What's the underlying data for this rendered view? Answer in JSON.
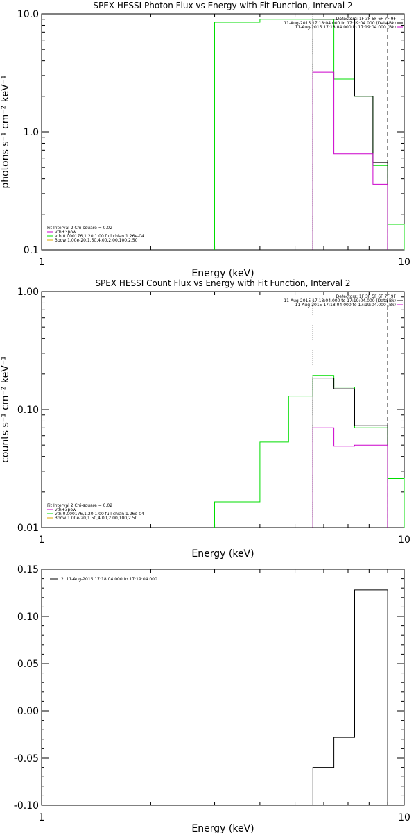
{
  "chart_data": [
    {
      "type": "line",
      "title": "SPEX HESSI Photon Flux vs Energy with Fit Function, Interval 2",
      "xlabel": "Energy (keV)",
      "ylabel": "photons s⁻¹ cm⁻² keV⁻¹",
      "xscale": "log",
      "yscale": "log",
      "xlim": [
        1,
        10
      ],
      "ylim": [
        0.1,
        10
      ],
      "xticks": [
        {
          "v": 1,
          "label": "1"
        },
        {
          "v": 10,
          "label": "10"
        }
      ],
      "yticks": [
        {
          "v": 10,
          "label": "10.0"
        },
        {
          "v": 1,
          "label": "1.0"
        },
        {
          "v": 0.1,
          "label": "0.1"
        }
      ],
      "vlines": [
        {
          "x": 5.6,
          "style": "dotted",
          "color": "#000000"
        },
        {
          "x": 9.0,
          "style": "dashed",
          "color": "#000000"
        }
      ],
      "header_lines": [
        "Detectors: 1F 3F 5F 6F 7F 9F",
        "11-Aug-2015 17:18:04.000 to 17:19:04.000 (Data-Bk)",
        "11-Aug-2015 17:18:04.000 to 17:19:04.000 (Bk)"
      ],
      "header_swatches": [
        "#000000",
        "#cc00cc"
      ],
      "fit_legend": {
        "header": "Fit Interval  2   Chi-square = 0.02",
        "entries": [
          {
            "label": "vth+3pow",
            "color": "#cc00cc"
          },
          {
            "label": "vth 0.000176,1.20,1.00  full chian 1.26e-04",
            "color": "#00dd00"
          },
          {
            "label": "3pow 1.00e-20,1.50,4.00,2.00,100,2.50",
            "color": "#ddaa00"
          }
        ]
      },
      "series": [
        {
          "color": "#00dd00",
          "edges": [
            3.0,
            4.0,
            5.6,
            6.4,
            7.3,
            8.2,
            9.0,
            10.0
          ],
          "values": [
            8.5,
            9.0,
            9.0,
            2.8,
            2.0,
            0.52,
            0.165
          ]
        },
        {
          "color": "#000000",
          "edges": [
            5.6,
            6.4,
            7.3,
            8.2,
            9.0
          ],
          "values": [
            9.0,
            9.0,
            2.0,
            0.55
          ]
        },
        {
          "color": "#cc00cc",
          "edges": [
            5.6,
            6.4,
            7.3,
            8.2,
            9.0
          ],
          "values": [
            3.2,
            0.65,
            0.65,
            0.36
          ]
        }
      ]
    },
    {
      "type": "line",
      "title": "SPEX HESSI Count Flux vs Energy with Fit Function, Interval 2",
      "xlabel": "Energy (keV)",
      "ylabel": "counts s⁻¹ cm⁻² keV⁻¹",
      "xscale": "log",
      "yscale": "log",
      "xlim": [
        1,
        10
      ],
      "ylim": [
        0.01,
        1
      ],
      "xticks": [
        {
          "v": 1,
          "label": "1"
        },
        {
          "v": 10,
          "label": "10"
        }
      ],
      "yticks": [
        {
          "v": 1,
          "label": "1.00"
        },
        {
          "v": 0.1,
          "label": "0.10"
        },
        {
          "v": 0.01,
          "label": "0.01"
        }
      ],
      "vlines": [
        {
          "x": 5.6,
          "style": "dotted",
          "color": "#000000"
        },
        {
          "x": 9.0,
          "style": "dashed",
          "color": "#000000"
        }
      ],
      "header_lines": [
        "Detectors: 1F 3F 5F 6F 7F 9F",
        "11-Aug-2015 17:18:04.000 to 17:19:04.000 (Data-Bk)",
        "11-Aug-2015 17:18:04.000 to 17:19:04.000 (Bk)"
      ],
      "header_swatches": [
        "#000000",
        "#cc00cc"
      ],
      "fit_legend": {
        "header": "Fit Interval  2   Chi-square = 0.02",
        "entries": [
          {
            "label": "vth+3pow",
            "color": "#cc00cc"
          },
          {
            "label": "vth 0.000176,1.20,1.00  full chian 1.26e-04",
            "color": "#00dd00"
          },
          {
            "label": "3pow 1.00e-20,1.50,4.00,2.00,100,2.50",
            "color": "#ddaa00"
          }
        ]
      },
      "series": [
        {
          "color": "#00dd00",
          "edges": [
            3.0,
            3.5,
            4.0,
            4.8,
            5.6,
            6.4,
            7.3,
            8.2,
            9.0,
            10.0
          ],
          "values": [
            0.0165,
            0.0165,
            0.053,
            0.13,
            0.195,
            0.155,
            0.07,
            0.07,
            0.026
          ]
        },
        {
          "color": "#000000",
          "edges": [
            5.6,
            6.4,
            7.3,
            8.2,
            9.0
          ],
          "values": [
            0.185,
            0.15,
            0.073,
            0.073
          ]
        },
        {
          "color": "#cc00cc",
          "edges": [
            5.6,
            6.4,
            7.3,
            8.2,
            9.0
          ],
          "values": [
            0.07,
            0.049,
            0.05,
            0.05
          ]
        }
      ]
    },
    {
      "type": "line",
      "title": "",
      "xlabel": "Energy (keV)",
      "ylabel": "",
      "xscale": "log",
      "yscale": "linear",
      "xlim": [
        1,
        10
      ],
      "ylim": [
        -0.1,
        0.15
      ],
      "xticks": [
        {
          "v": 1,
          "label": "1"
        },
        {
          "v": 10,
          "label": "10"
        }
      ],
      "yticks": [
        {
          "v": 0.15,
          "label": "0.15"
        },
        {
          "v": 0.1,
          "label": "0.10"
        },
        {
          "v": 0.05,
          "label": "0.05"
        },
        {
          "v": 0.0,
          "label": "0.00"
        },
        {
          "v": -0.05,
          "label": "-0.05"
        },
        {
          "v": -0.1,
          "label": "-0.10"
        }
      ],
      "vlines": [],
      "legend": [
        {
          "label": "2. 11-Aug-2015 17:18:04.000 to 17:19:04.000",
          "color": "#000000"
        }
      ],
      "series": [
        {
          "color": "#000000",
          "edges": [
            5.6,
            6.4,
            7.3,
            8.2,
            9.0
          ],
          "values": [
            -0.06,
            -0.028,
            0.128,
            0.128
          ],
          "drop_to_bottom": true
        }
      ]
    }
  ]
}
